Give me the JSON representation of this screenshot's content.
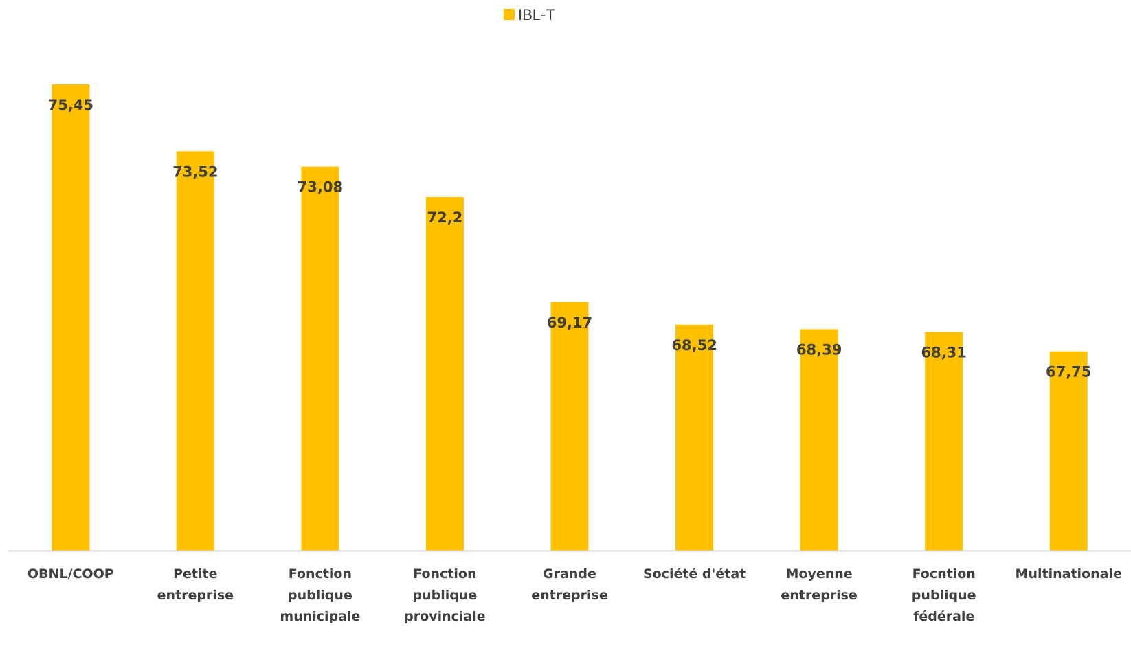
{
  "chart_data": {
    "type": "bar",
    "categories": [
      "OBNL/COOP",
      "Petite entreprise",
      "Fonction publique municipale",
      "Fonction publique provinciale",
      "Grande entreprise",
      "Société d'état",
      "Moyenne entreprise",
      "Focntion publique fédérale",
      "Multinationale"
    ],
    "category_lines": [
      [
        "OBNL/COOP"
      ],
      [
        "Petite",
        "entreprise"
      ],
      [
        "Fonction",
        "publique",
        "municipale"
      ],
      [
        "Fonction",
        "publique",
        "provinciale"
      ],
      [
        "Grande",
        "entreprise"
      ],
      [
        "Société d'état"
      ],
      [
        "Moyenne",
        "entreprise"
      ],
      [
        "Focntion",
        "publique",
        "fédérale"
      ],
      [
        "Multinationale"
      ]
    ],
    "series": [
      {
        "name": "IBL-T",
        "color": "#FFC000",
        "values": [
          75.45,
          73.52,
          73.08,
          72.2,
          69.17,
          68.52,
          68.39,
          68.31,
          67.75
        ]
      }
    ],
    "value_labels": [
      "75,45",
      "73,52",
      "73,08",
      "72,2",
      "69,17",
      "68,52",
      "68,39",
      "68,31",
      "67,75"
    ],
    "title": "",
    "xlabel": "",
    "ylabel": "",
    "ylim": [
      62.0,
      76.0
    ],
    "grid": false,
    "y_axis_visible": false,
    "legend_position": "top-center",
    "colors": {
      "bar": "#FFC000",
      "axis_line": "#D9D9D9",
      "text": "#404040"
    }
  }
}
